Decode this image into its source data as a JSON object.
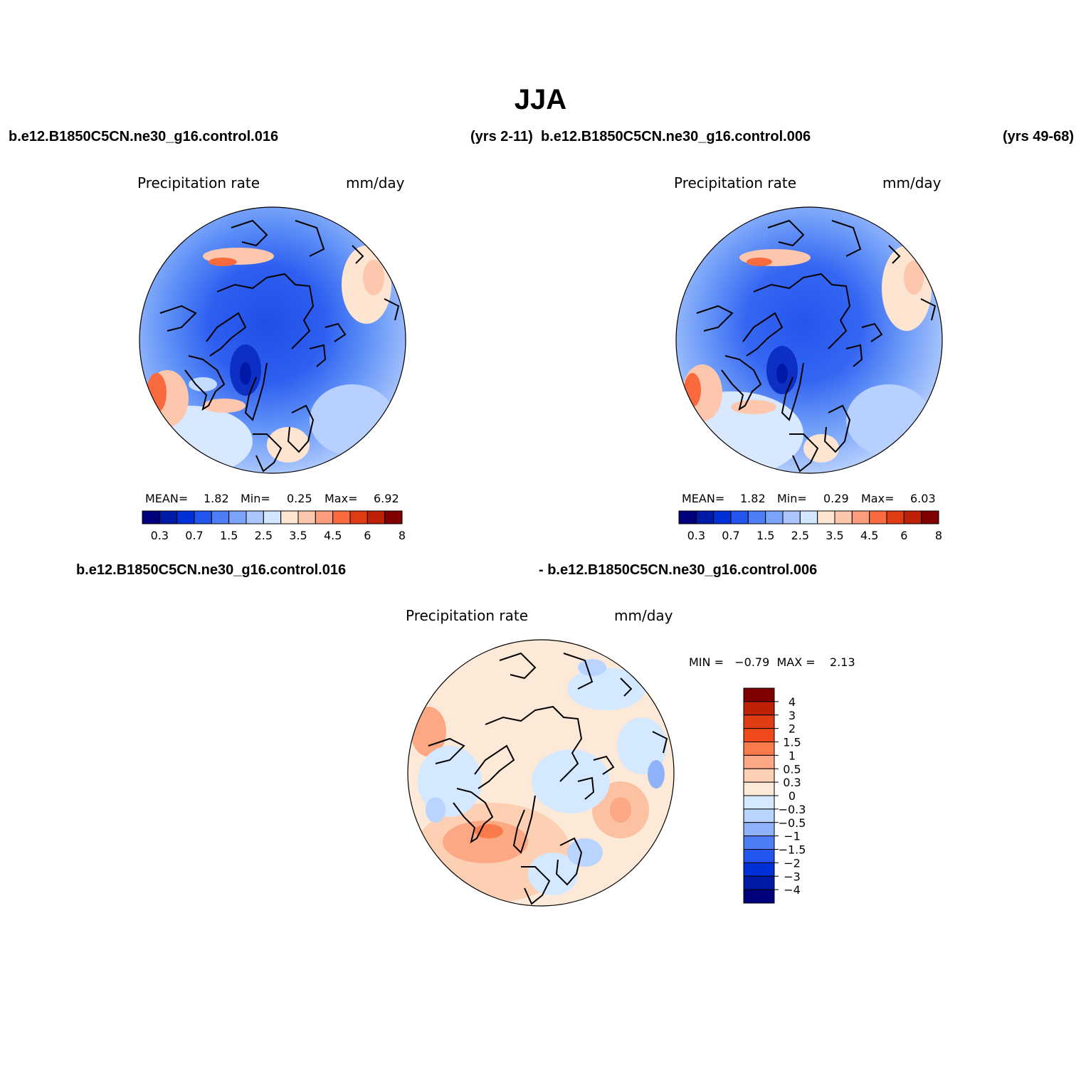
{
  "figure": {
    "title": "JJA"
  },
  "top_panels": [
    {
      "case_name": "b.e12.B1850C5CN.ne30_g16.control.016",
      "years": "(yrs 2-11)",
      "variable": "Precipitation rate",
      "units": "mm/day",
      "stats": {
        "mean_label": "MEAN=",
        "mean": "1.82",
        "min_label": "Min=",
        "min": "0.25",
        "max_label": "Max=",
        "max": "6.92"
      }
    },
    {
      "case_name": "b.e12.B1850C5CN.ne30_g16.control.006",
      "years": "(yrs 49-68)",
      "variable": "Precipitation rate",
      "units": "mm/day",
      "stats": {
        "mean_label": "MEAN=",
        "mean": "1.82",
        "min_label": "Min=",
        "min": "0.29",
        "max_label": "Max=",
        "max": "6.03"
      }
    }
  ],
  "top_colorbar": {
    "colors": [
      "#00007d",
      "#001aa8",
      "#0030d8",
      "#2256ee",
      "#4c7ef7",
      "#7ba3fa",
      "#aac6fd",
      "#d2e6ff",
      "#fde5d2",
      "#fcc7ac",
      "#fc9c7c",
      "#f96a3e",
      "#e03c14",
      "#bf2106",
      "#800000"
    ],
    "labels": [
      "0.3",
      "0.7",
      "1.5",
      "2.5",
      "3.5",
      "4.5",
      "6",
      "8"
    ]
  },
  "diff_panel": {
    "case_a": "b.e12.B1850C5CN.ne30_g16.control.016",
    "case_b": "- b.e12.B1850C5CN.ne30_g16.control.006",
    "variable": "Precipitation rate",
    "units": "mm/day",
    "minmax": "MIN =   −0.79  MAX =    2.13"
  },
  "diff_colorbar": {
    "colors_top_to_bottom": [
      "#800000",
      "#bf2106",
      "#e03c14",
      "#f04a1c",
      "#f97a4a",
      "#fca884",
      "#fdd0b4",
      "#fde9d8",
      "#d4e8ff",
      "#b8d4ff",
      "#8fb3fb",
      "#4c7ef7",
      "#2256ee",
      "#0030d8",
      "#001aa8",
      "#00007d"
    ],
    "labels": [
      "4",
      "3",
      "2",
      "1.5",
      "1",
      "0.5",
      "0.3",
      "0",
      "−0.3",
      "−0.5",
      "−1",
      "−1.5",
      "−2",
      "−3",
      "−4"
    ]
  }
}
